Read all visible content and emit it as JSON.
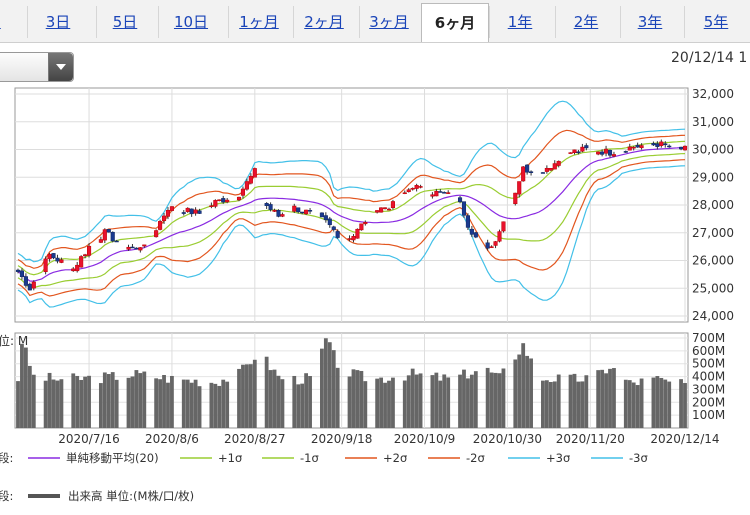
{
  "tabs": [
    {
      "label": "1"
    },
    {
      "label": "3日"
    },
    {
      "label": "5日"
    },
    {
      "label": "10日"
    },
    {
      "label": "1ヶ月"
    },
    {
      "label": "2ヶ月"
    },
    {
      "label": "3ヶ月"
    },
    {
      "label": "6ヶ月",
      "active": true
    },
    {
      "label": "1年"
    },
    {
      "label": "2年"
    },
    {
      "label": "3年"
    },
    {
      "label": "5年"
    }
  ],
  "date_label": "20/12/14 1",
  "chart_data": {
    "type": "candlestick",
    "price_axis": {
      "ticks": [
        "32,000",
        "31,000",
        "30,000",
        "29,000",
        "28,000",
        "27,000",
        "26,000",
        "25,000",
        "24,000"
      ],
      "ylim": [
        24000,
        32000
      ]
    },
    "volume_axis": {
      "ticks": [
        "700M",
        "600M",
        "500M",
        "400M",
        "300M",
        "200M",
        "100M"
      ],
      "unit_partial": "位: M",
      "ylim": [
        0,
        700
      ]
    },
    "x_ticks": [
      "2020/7/16",
      "2020/8/6",
      "2020/8/27",
      "2020/9/18",
      "2020/10/9",
      "2020/10/30",
      "2020/11/20",
      "2020/12/14"
    ],
    "x_tick_days": [
      18,
      39,
      60,
      82,
      103,
      124,
      145,
      169
    ],
    "x_range": [
      0,
      169
    ],
    "legend_row1": {
      "prefix": "段:",
      "entries": [
        {
          "label": "単純移動平均(20)",
          "color": "#8a2be2"
        },
        {
          "label": "+1σ",
          "color": "#9acd32"
        },
        {
          "label": "-1σ",
          "color": "#9acd32"
        },
        {
          "label": "+2σ",
          "color": "#e2561f"
        },
        {
          "label": "-2σ",
          "color": "#e2561f"
        },
        {
          "label": "+3σ",
          "color": "#43c0e8"
        },
        {
          "label": "-3σ",
          "color": "#43c0e8"
        }
      ]
    },
    "legend_row2": {
      "prefix": "段:",
      "label": "出来高 単位:(M株/口/枚)",
      "color": "#555555"
    },
    "close_keypoints": [
      [
        0,
        25600
      ],
      [
        3,
        25000
      ],
      [
        8,
        26200
      ],
      [
        14,
        25700
      ],
      [
        18,
        26500
      ],
      [
        22,
        27000
      ],
      [
        26,
        26600
      ],
      [
        30,
        26400
      ],
      [
        34,
        26900
      ],
      [
        38,
        27900
      ],
      [
        42,
        27800
      ],
      [
        46,
        27700
      ],
      [
        50,
        28100
      ],
      [
        56,
        28400
      ],
      [
        60,
        29200
      ],
      [
        62,
        28100
      ],
      [
        66,
        27600
      ],
      [
        70,
        27900
      ],
      [
        74,
        27700
      ],
      [
        78,
        27400
      ],
      [
        82,
        26800
      ],
      [
        85,
        26900
      ],
      [
        90,
        27800
      ],
      [
        95,
        28000
      ],
      [
        100,
        28700
      ],
      [
        103,
        28500
      ],
      [
        108,
        28400
      ],
      [
        112,
        28200
      ],
      [
        114,
        27300
      ],
      [
        117,
        26600
      ],
      [
        120,
        26500
      ],
      [
        124,
        27700
      ],
      [
        128,
        29300
      ],
      [
        132,
        29200
      ],
      [
        136,
        29500
      ],
      [
        140,
        29900
      ],
      [
        144,
        30000
      ],
      [
        150,
        29900
      ],
      [
        156,
        30100
      ],
      [
        162,
        30200
      ],
      [
        169,
        30000
      ]
    ],
    "volume_keypoints": [
      [
        0,
        380
      ],
      [
        1,
        680
      ],
      [
        4,
        400
      ],
      [
        10,
        380
      ],
      [
        20,
        390
      ],
      [
        30,
        420
      ],
      [
        40,
        380
      ],
      [
        50,
        360
      ],
      [
        56,
        420
      ],
      [
        60,
        560
      ],
      [
        62,
        560
      ],
      [
        66,
        400
      ],
      [
        70,
        380
      ],
      [
        75,
        390
      ],
      [
        78,
        690
      ],
      [
        82,
        440
      ],
      [
        90,
        380
      ],
      [
        100,
        420
      ],
      [
        110,
        380
      ],
      [
        118,
        470
      ],
      [
        122,
        390
      ],
      [
        128,
        650
      ],
      [
        132,
        390
      ],
      [
        140,
        380
      ],
      [
        146,
        390
      ],
      [
        150,
        480
      ],
      [
        155,
        350
      ],
      [
        162,
        380
      ],
      [
        169,
        330
      ]
    ]
  }
}
